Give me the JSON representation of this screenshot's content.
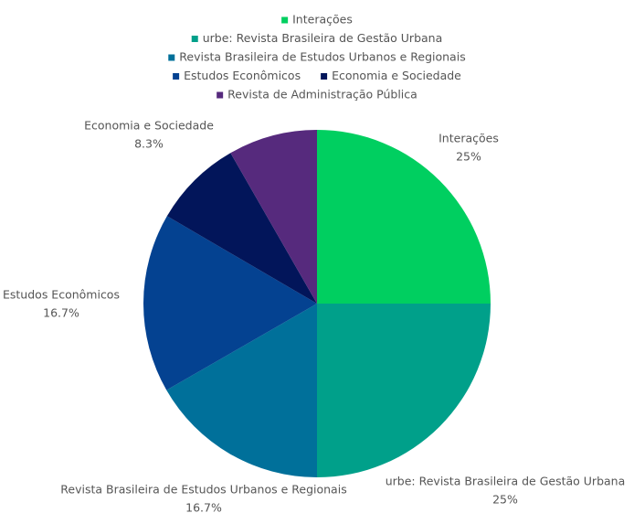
{
  "chart_data": {
    "type": "pie",
    "categories": [
      "Interações",
      "urbe: Revista Brasileira de Gestão Urbana",
      "Revista Brasileira de Estudos Urbanos e Regionais",
      "Estudos Econômicos",
      "Economia e Sociedade",
      "Revista de Administração Pública"
    ],
    "values": [
      25,
      25,
      16.7,
      16.7,
      8.3,
      8.3
    ],
    "value_labels": [
      "25%",
      "25%",
      "16.7%",
      "16.7%",
      "8.3%",
      null
    ],
    "colors": [
      "#00cf60",
      "#00a08a",
      "#00709a",
      "#044291",
      "#02155a",
      "#562a7d"
    ],
    "legend": "top"
  }
}
